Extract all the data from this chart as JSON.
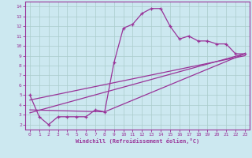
{
  "xlabel": "Windchill (Refroidissement éolien,°C)",
  "background_color": "#cce8f0",
  "line_color": "#993399",
  "grid_color": "#aacccc",
  "xlim": [
    -0.5,
    23.5
  ],
  "ylim": [
    1.5,
    14.5
  ],
  "xticks": [
    0,
    1,
    2,
    3,
    4,
    5,
    6,
    7,
    8,
    9,
    10,
    11,
    12,
    13,
    14,
    15,
    16,
    17,
    18,
    19,
    20,
    21,
    22,
    23
  ],
  "yticks": [
    2,
    3,
    4,
    5,
    6,
    7,
    8,
    9,
    10,
    11,
    12,
    13,
    14
  ],
  "series1_x": [
    0,
    1,
    2,
    3,
    4,
    5,
    6,
    7,
    8,
    9,
    10,
    11,
    12,
    13,
    14,
    15,
    16,
    17,
    18,
    19,
    20,
    21,
    22,
    23
  ],
  "series1_y": [
    5.0,
    2.8,
    2.0,
    2.8,
    2.8,
    2.8,
    2.8,
    3.5,
    3.3,
    8.3,
    11.8,
    12.2,
    13.3,
    13.8,
    13.8,
    12.0,
    10.7,
    11.0,
    10.5,
    10.5,
    10.2,
    10.2,
    9.2,
    9.2
  ],
  "line2_x": [
    0,
    23
  ],
  "line2_y": [
    3.2,
    9.2
  ],
  "line3_x": [
    0,
    23
  ],
  "line3_y": [
    4.5,
    9.0
  ],
  "line4_x": [
    0,
    8,
    23
  ],
  "line4_y": [
    3.5,
    3.3,
    9.2
  ]
}
